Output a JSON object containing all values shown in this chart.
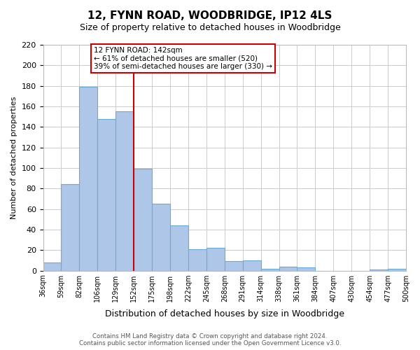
{
  "title": "12, FYNN ROAD, WOODBRIDGE, IP12 4LS",
  "subtitle": "Size of property relative to detached houses in Woodbridge",
  "xlabel": "Distribution of detached houses by size in Woodbridge",
  "ylabel": "Number of detached properties",
  "bin_labels": [
    "36sqm",
    "59sqm",
    "82sqm",
    "106sqm",
    "129sqm",
    "152sqm",
    "175sqm",
    "198sqm",
    "222sqm",
    "245sqm",
    "268sqm",
    "291sqm",
    "314sqm",
    "338sqm",
    "361sqm",
    "384sqm",
    "407sqm",
    "430sqm",
    "454sqm",
    "477sqm",
    "500sqm"
  ],
  "bar_values": [
    8,
    84,
    179,
    148,
    155,
    99,
    65,
    44,
    21,
    22,
    9,
    10,
    2,
    4,
    3,
    0,
    0,
    0,
    1,
    2
  ],
  "bar_color": "#aec6e8",
  "bar_edge_color": "#6aaad4",
  "marker_line_x_label": "152sqm",
  "marker_label": "12 FYNN ROAD: 142sqm",
  "annotation_line1": "← 61% of detached houses are smaller (520)",
  "annotation_line2": "39% of semi-detached houses are larger (330) →",
  "annotation_box_color": "#ffffff",
  "annotation_box_edge_color": "#cc0000",
  "marker_line_color": "#cc0000",
  "ylim": [
    0,
    220
  ],
  "yticks": [
    0,
    20,
    40,
    60,
    80,
    100,
    120,
    140,
    160,
    180,
    200,
    220
  ],
  "footer_line1": "Contains HM Land Registry data © Crown copyright and database right 2024.",
  "footer_line2": "Contains public sector information licensed under the Open Government Licence v3.0.",
  "background_color": "#ffffff",
  "grid_color": "#cccccc"
}
